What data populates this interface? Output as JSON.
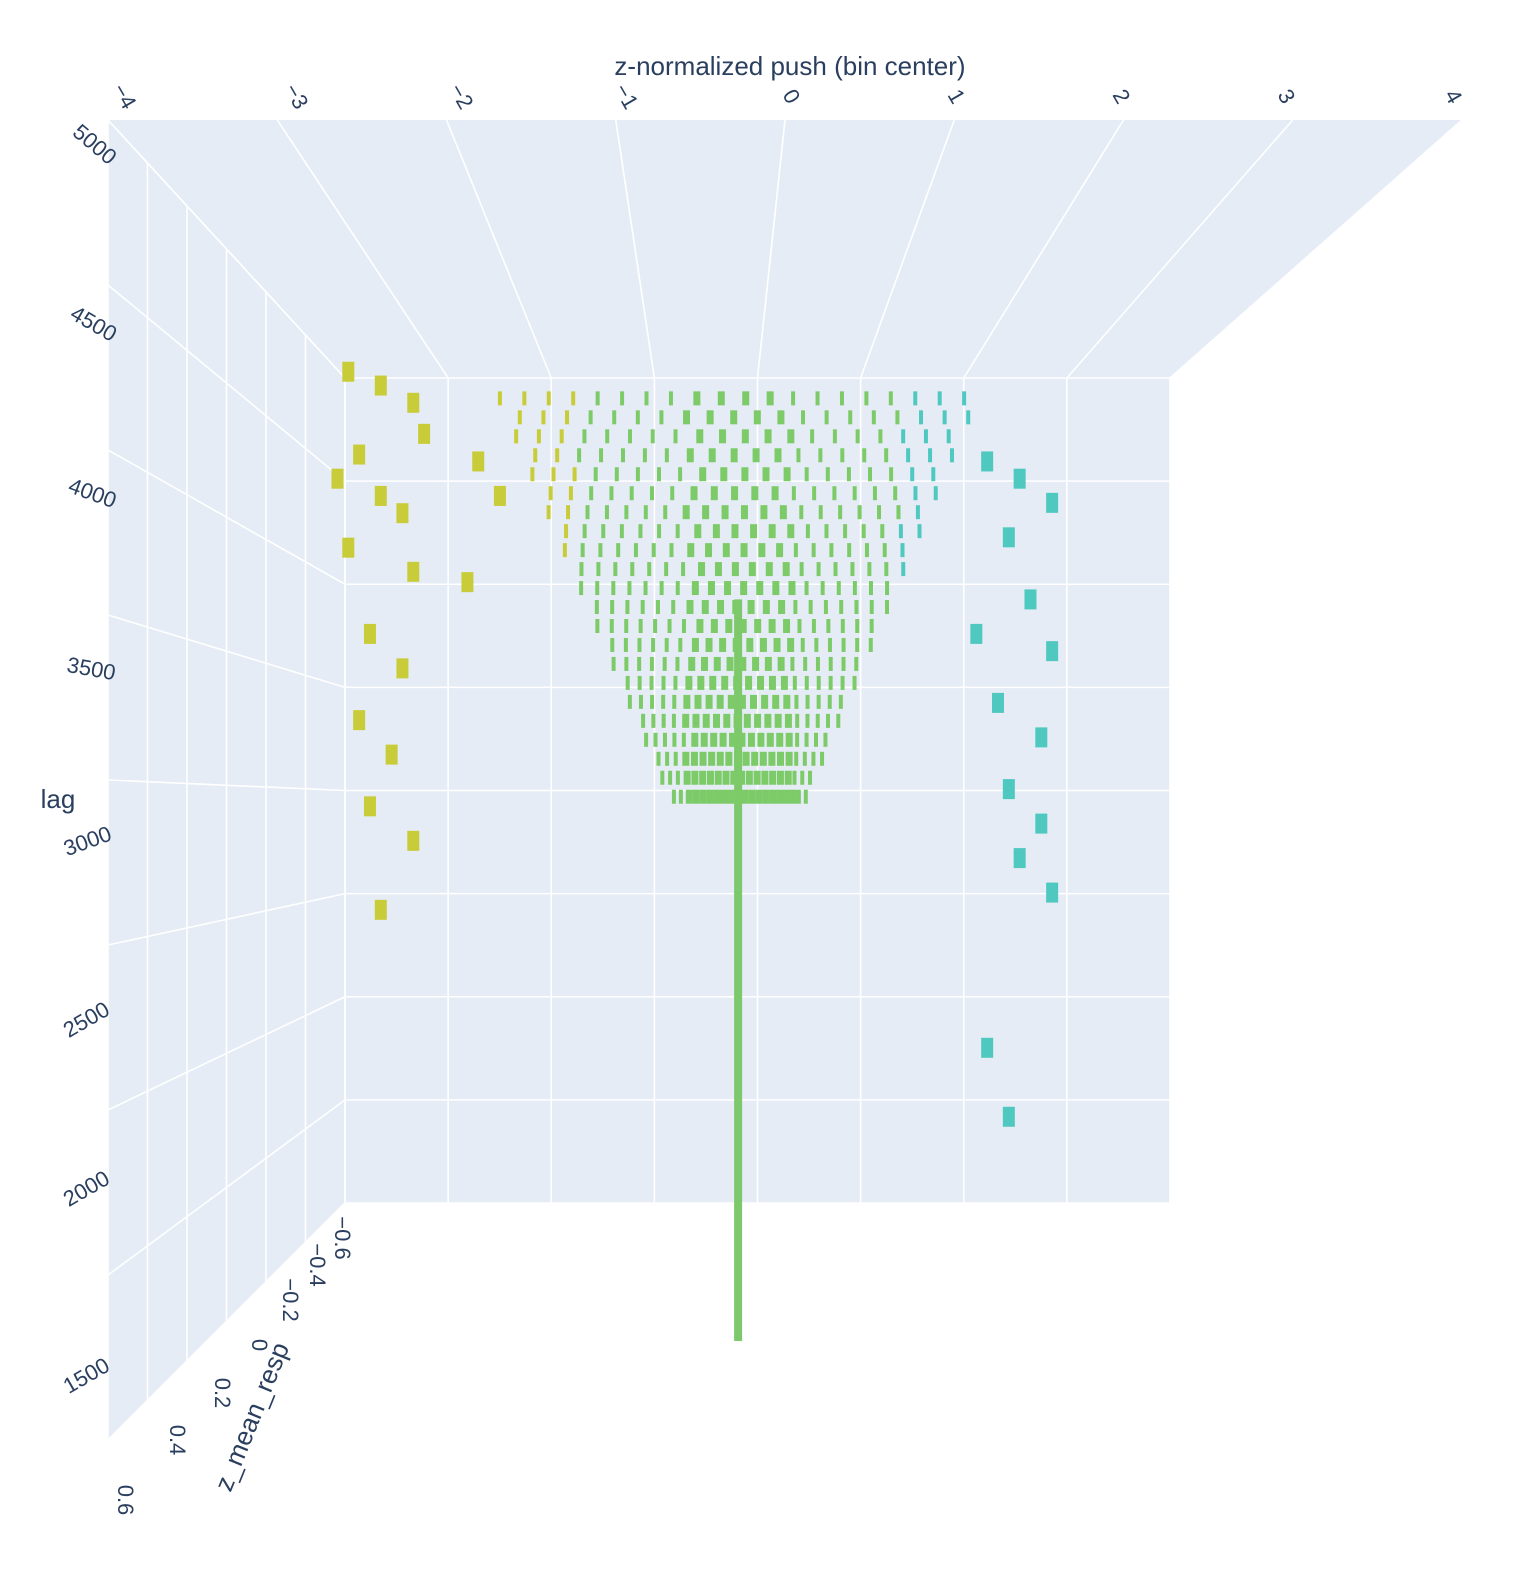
{
  "chart_data": {
    "type": "surface3d",
    "title": "",
    "x_axis": {
      "label": "z-normalized push (bin center)",
      "ticks": [
        "−4",
        "−3",
        "−2",
        "−1",
        "0",
        "1",
        "2",
        "3",
        "4"
      ],
      "range": [
        -4,
        4
      ]
    },
    "y_axis": {
      "label": "lag",
      "ticks": [
        "1500",
        "2000",
        "2500",
        "3000",
        "3500",
        "4000",
        "4500",
        "5000"
      ],
      "range": [
        1300,
        5000
      ]
    },
    "z_axis": {
      "label": "z_mean_resp",
      "ticks": [
        "−0.6",
        "−0.4",
        "−0.2",
        "0",
        "0.2",
        "0.4",
        "0.6"
      ],
      "range": [
        -0.6,
        0.6
      ]
    },
    "grid": true,
    "background_color": "#e5ecf6",
    "colorscale": [
      "#4fc8c0",
      "#7ccb68",
      "#c8cc38"
    ],
    "surface_color_note_value": "green",
    "series": [
      {
        "name": "",
        "central_ridge_push": 0,
        "central_ridge_lag_range": [
          1750,
          3900
        ],
        "dense_region_lag_range": [
          3500,
          4500
        ],
        "dense_region_push_range": [
          -2,
          2
        ]
      }
    ]
  }
}
